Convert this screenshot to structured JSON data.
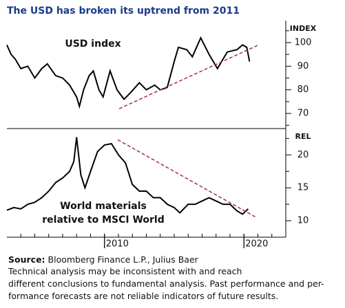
{
  "chart_data": [
    {
      "type": "line",
      "title": "The USD has broken its uptrend from 2011",
      "label": [
        "USD index"
      ],
      "ylabel": "INDEX",
      "ylim": [
        63.6,
        109.3
      ],
      "yticks": [
        70,
        80,
        90,
        100
      ],
      "yminor": [
        65,
        75,
        85,
        95,
        105
      ],
      "xlim": [
        2003,
        2023
      ],
      "series": [
        {
          "color": "#000000",
          "x": [
            2003.0,
            2003.3,
            2003.6,
            2004.0,
            2004.5,
            2005.0,
            2005.5,
            2005.9,
            2006.5,
            2007.0,
            2007.5,
            2008.0,
            2008.2,
            2008.5,
            2008.9,
            2009.2,
            2009.6,
            2009.9,
            2010.4,
            2010.9,
            2011.4,
            2011.9,
            2012.5,
            2013.0,
            2013.6,
            2014.0,
            2014.5,
            2015.0,
            2015.3,
            2015.9,
            2016.3,
            2016.9,
            2017.5,
            2018.1,
            2018.8,
            2019.5,
            2019.9,
            2020.2,
            2020.4
          ],
          "values": [
            99,
            95,
            93,
            89,
            90,
            85,
            89,
            91,
            86,
            85,
            82,
            77,
            73,
            80,
            86,
            88,
            80,
            77,
            88,
            80,
            76,
            79,
            83,
            80,
            82,
            80,
            81,
            92,
            98,
            97,
            94,
            102,
            95,
            89,
            96,
            97,
            99,
            98,
            92
          ]
        }
      ],
      "trend": {
        "color": "#a0304a",
        "x": [
          2011.05,
          2021.05
        ],
        "values": [
          72,
          99
        ]
      }
    },
    {
      "type": "line",
      "label": [
        "World materials",
        "relative to MSCI World"
      ],
      "ylabel": "REL",
      "ylim": [
        7.5,
        24
      ],
      "yticks": [
        10,
        15,
        20
      ],
      "yminor": [
        12.5,
        17.5,
        22.5
      ],
      "xlim": [
        2003,
        2023
      ],
      "xticks": [
        2010,
        2020
      ],
      "xminor": [
        2004,
        2005,
        2006,
        2007,
        2008,
        2009,
        2011,
        2012,
        2013,
        2014,
        2015,
        2016,
        2017,
        2018,
        2019,
        2021,
        2022
      ],
      "series": [
        {
          "color": "#000000",
          "x": [
            2003.0,
            2003.5,
            2004.0,
            2004.5,
            2005.0,
            2005.5,
            2006.0,
            2006.5,
            2007.0,
            2007.5,
            2007.8,
            2008.0,
            2008.3,
            2008.6,
            2009.0,
            2009.5,
            2010.0,
            2010.5,
            2011.0,
            2011.5,
            2012.0,
            2012.5,
            2013.0,
            2013.5,
            2014.0,
            2014.5,
            2015.0,
            2015.4,
            2016.0,
            2016.5,
            2017.0,
            2017.5,
            2018.0,
            2018.5,
            2019.0,
            2019.5,
            2019.9,
            2020.3
          ],
          "values": [
            11.6,
            12,
            11.8,
            12.5,
            12.8,
            13.5,
            14.5,
            15.8,
            16.5,
            17.5,
            19,
            22.7,
            17,
            15,
            17.5,
            20.5,
            21.5,
            21.7,
            20,
            18.8,
            15.5,
            14.5,
            14.5,
            13.5,
            13.5,
            12.5,
            12,
            11.2,
            12.5,
            12.5,
            13,
            13.5,
            13,
            12.5,
            12.5,
            11.5,
            11,
            11.8
          ]
        }
      ],
      "trend": {
        "color": "#a0304a",
        "x": [
          2010.95,
          2020.8
        ],
        "values": [
          22.3,
          10.6
        ]
      }
    }
  ],
  "footer": {
    "source_label": "Source:",
    "source": "Bloomberg Finance L.P., Julius Baer",
    "notes": [
      "Technical analysis may be inconsistent with and reach",
      "different conclusions to fundamental analysis. Past performance and per-",
      "formance forecasts are not reliable indicators of future results."
    ]
  }
}
